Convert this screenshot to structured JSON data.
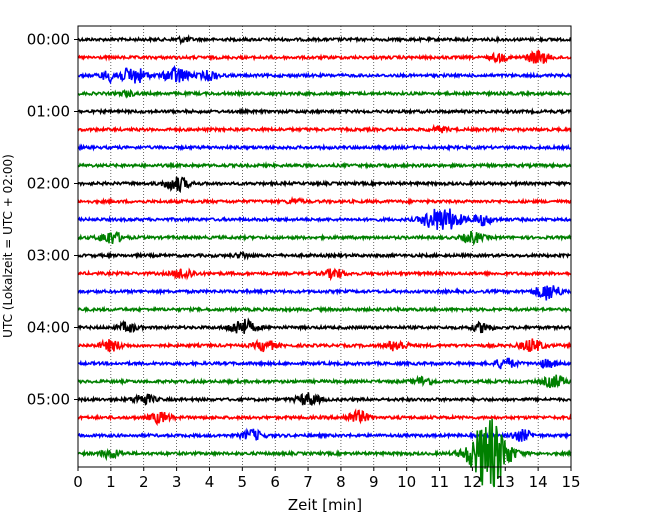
{
  "chart_data": {
    "type": "line",
    "xlabel": "Zeit  [min]",
    "ylabel": "UTC (Lokalzeit = UTC + 02:00)",
    "xlim": [
      0,
      15
    ],
    "x_ticks": [
      "0",
      "1",
      "2",
      "3",
      "4",
      "5",
      "6",
      "7",
      "8",
      "9",
      "10",
      "11",
      "12",
      "13",
      "14",
      "15"
    ],
    "y_ticks": [
      "00:00",
      "01:00",
      "02:00",
      "03:00",
      "04:00",
      "05:00"
    ],
    "trace_interval_min": 15,
    "grid": "vertical dotted",
    "trace_colors": [
      "#000000",
      "#ff0000",
      "#0000ff",
      "#008000"
    ],
    "traces": [
      {
        "start": "00:00",
        "color": "#000000",
        "bursts": [
          [
            3.2,
            0.25
          ]
        ]
      },
      {
        "start": "00:15",
        "color": "#ff0000",
        "bursts": [
          [
            12.8,
            0.4
          ],
          [
            14.0,
            0.7
          ]
        ]
      },
      {
        "start": "00:30",
        "color": "#0000ff",
        "bursts": [
          [
            1.0,
            0.6
          ],
          [
            1.7,
            0.9
          ],
          [
            3.0,
            0.9
          ],
          [
            4.0,
            0.5
          ]
        ]
      },
      {
        "start": "00:45",
        "color": "#008000",
        "bursts": [
          [
            1.5,
            0.25
          ]
        ]
      },
      {
        "start": "01:00",
        "color": "#000000",
        "bursts": []
      },
      {
        "start": "01:15",
        "color": "#ff0000",
        "bursts": [
          [
            11.0,
            0.3
          ]
        ]
      },
      {
        "start": "01:30",
        "color": "#0000ff",
        "bursts": []
      },
      {
        "start": "01:45",
        "color": "#008000",
        "bursts": []
      },
      {
        "start": "02:00",
        "color": "#000000",
        "bursts": [
          [
            3.0,
            0.8
          ]
        ]
      },
      {
        "start": "02:15",
        "color": "#ff0000",
        "bursts": [
          [
            6.6,
            0.25
          ]
        ]
      },
      {
        "start": "02:30",
        "color": "#0000ff",
        "bursts": [
          [
            10.8,
            0.9
          ],
          [
            11.3,
            1.0
          ],
          [
            12.3,
            0.6
          ]
        ]
      },
      {
        "start": "02:45",
        "color": "#008000",
        "bursts": [
          [
            1.0,
            0.7
          ],
          [
            12.0,
            0.6
          ]
        ]
      },
      {
        "start": "03:00",
        "color": "#000000",
        "bursts": [
          [
            5.0,
            0.25
          ]
        ]
      },
      {
        "start": "03:15",
        "color": "#ff0000",
        "bursts": [
          [
            3.2,
            0.6
          ],
          [
            7.8,
            0.5
          ]
        ]
      },
      {
        "start": "03:30",
        "color": "#0000ff",
        "bursts": [
          [
            14.3,
            0.9
          ]
        ]
      },
      {
        "start": "03:45",
        "color": "#008000",
        "bursts": []
      },
      {
        "start": "04:00",
        "color": "#000000",
        "bursts": [
          [
            1.5,
            0.5
          ],
          [
            5.0,
            0.9
          ],
          [
            12.3,
            0.5
          ]
        ]
      },
      {
        "start": "04:15",
        "color": "#ff0000",
        "bursts": [
          [
            1.0,
            0.6
          ],
          [
            5.7,
            0.6
          ],
          [
            9.7,
            0.6
          ],
          [
            13.8,
            0.7
          ]
        ]
      },
      {
        "start": "04:30",
        "color": "#0000ff",
        "bursts": [
          [
            13.0,
            0.6
          ],
          [
            14.3,
            0.4
          ]
        ]
      },
      {
        "start": "04:45",
        "color": "#008000",
        "bursts": [
          [
            10.5,
            0.5
          ],
          [
            14.5,
            0.7
          ]
        ]
      },
      {
        "start": "05:00",
        "color": "#000000",
        "bursts": [
          [
            2.0,
            0.6
          ],
          [
            7.0,
            0.7
          ]
        ]
      },
      {
        "start": "05:15",
        "color": "#ff0000",
        "bursts": [
          [
            2.5,
            0.6
          ],
          [
            8.5,
            0.7
          ]
        ]
      },
      {
        "start": "05:30",
        "color": "#0000ff",
        "bursts": [
          [
            5.3,
            0.6
          ],
          [
            13.5,
            0.6
          ]
        ]
      },
      {
        "start": "05:45",
        "color": "#008000",
        "bursts": [
          [
            1.0,
            0.5
          ],
          [
            12.5,
            4.0
          ]
        ]
      }
    ]
  }
}
